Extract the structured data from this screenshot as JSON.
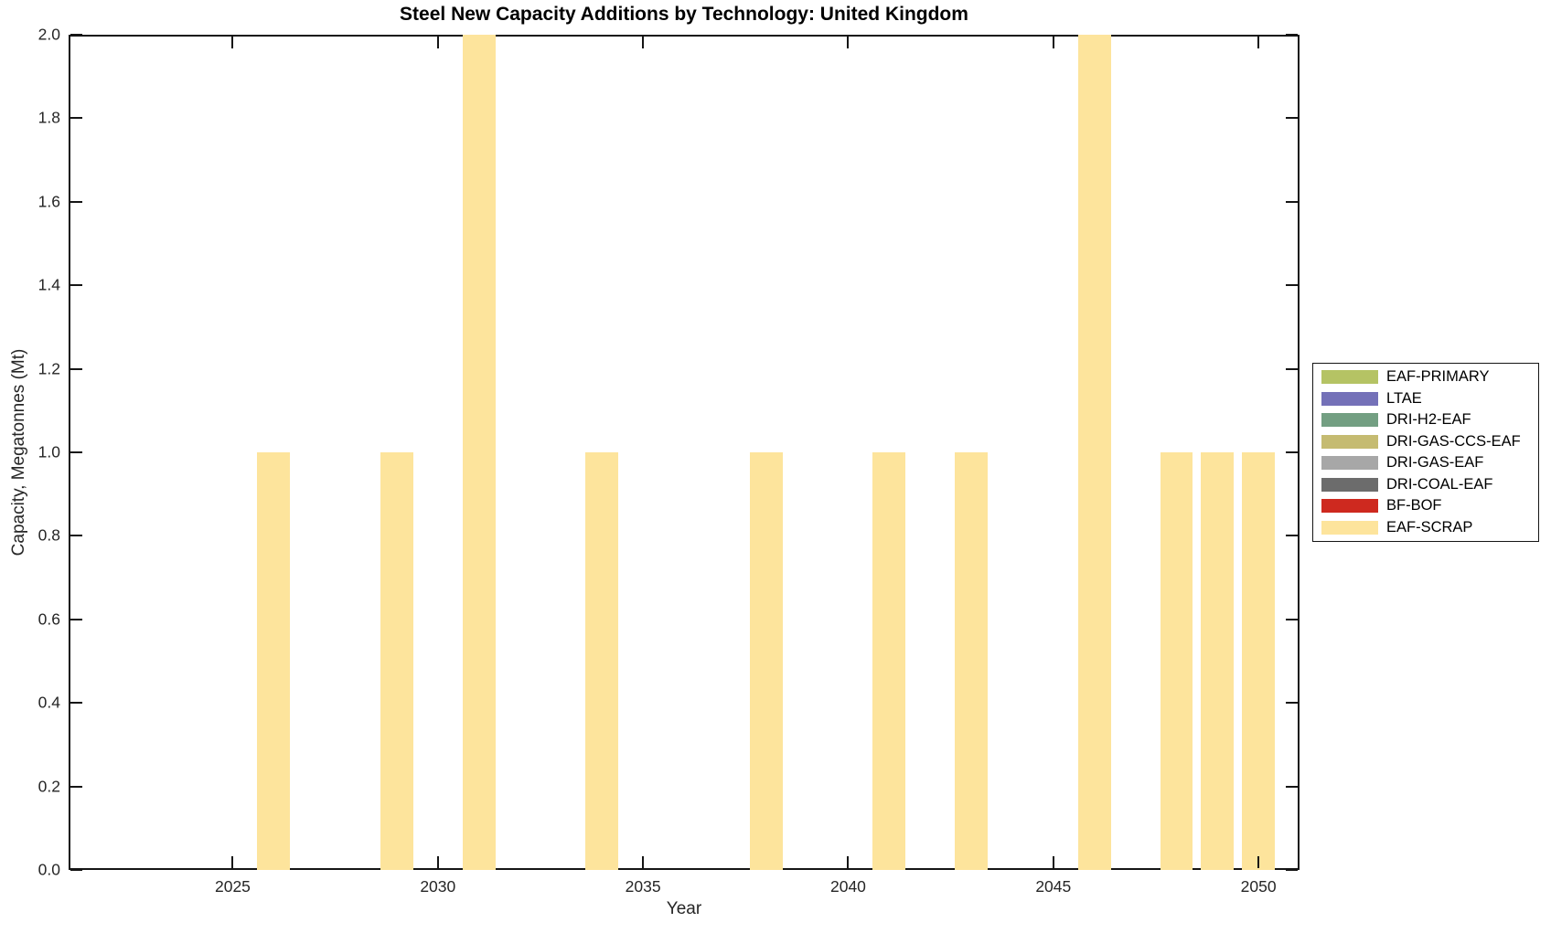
{
  "chart_data": {
    "type": "bar",
    "stacked": true,
    "title": "Steel New Capacity Additions by Technology: United Kingdom",
    "xlabel": "Year",
    "ylabel": "Capacity, Megatonnes (Mt)",
    "xlim": [
      2021,
      2051
    ],
    "ylim": [
      0,
      2
    ],
    "xtick_labels": [
      "2025",
      "2030",
      "2035",
      "2040",
      "2045",
      "2050"
    ],
    "ytick_labels": [
      "0.0",
      "0.2",
      "0.4",
      "0.6",
      "0.8",
      "1.0",
      "1.2",
      "1.4",
      "1.6",
      "1.8",
      "2.0"
    ],
    "bar_width_years": 0.8,
    "grid": false,
    "legend_position": "outside-right",
    "series": [
      {
        "name": "EAF-PRIMARY",
        "color": "#b5c364",
        "bars": []
      },
      {
        "name": "LTAE",
        "color": "#7471b8",
        "bars": []
      },
      {
        "name": "DRI-H2-EAF",
        "color": "#739f82",
        "bars": []
      },
      {
        "name": "DRI-GAS-CCS-EAF",
        "color": "#c5bb71",
        "bars": []
      },
      {
        "name": "DRI-GAS-EAF",
        "color": "#a7a7a7",
        "bars": []
      },
      {
        "name": "DRI-COAL-EAF",
        "color": "#6c6c6c",
        "bars": []
      },
      {
        "name": "BF-BOF",
        "color": "#ce291f",
        "bars": []
      },
      {
        "name": "EAF-SCRAP",
        "color": "#fde49c",
        "bars": [
          {
            "year": 2026,
            "value": 1.0
          },
          {
            "year": 2029,
            "value": 1.0
          },
          {
            "year": 2031,
            "value": 2.0
          },
          {
            "year": 2034,
            "value": 1.0
          },
          {
            "year": 2038,
            "value": 1.0
          },
          {
            "year": 2041,
            "value": 1.0
          },
          {
            "year": 2043,
            "value": 1.0
          },
          {
            "year": 2046,
            "value": 2.0
          },
          {
            "year": 2048,
            "value": 1.0
          },
          {
            "year": 2049,
            "value": 1.0
          },
          {
            "year": 2050,
            "value": 1.0
          }
        ]
      }
    ]
  }
}
